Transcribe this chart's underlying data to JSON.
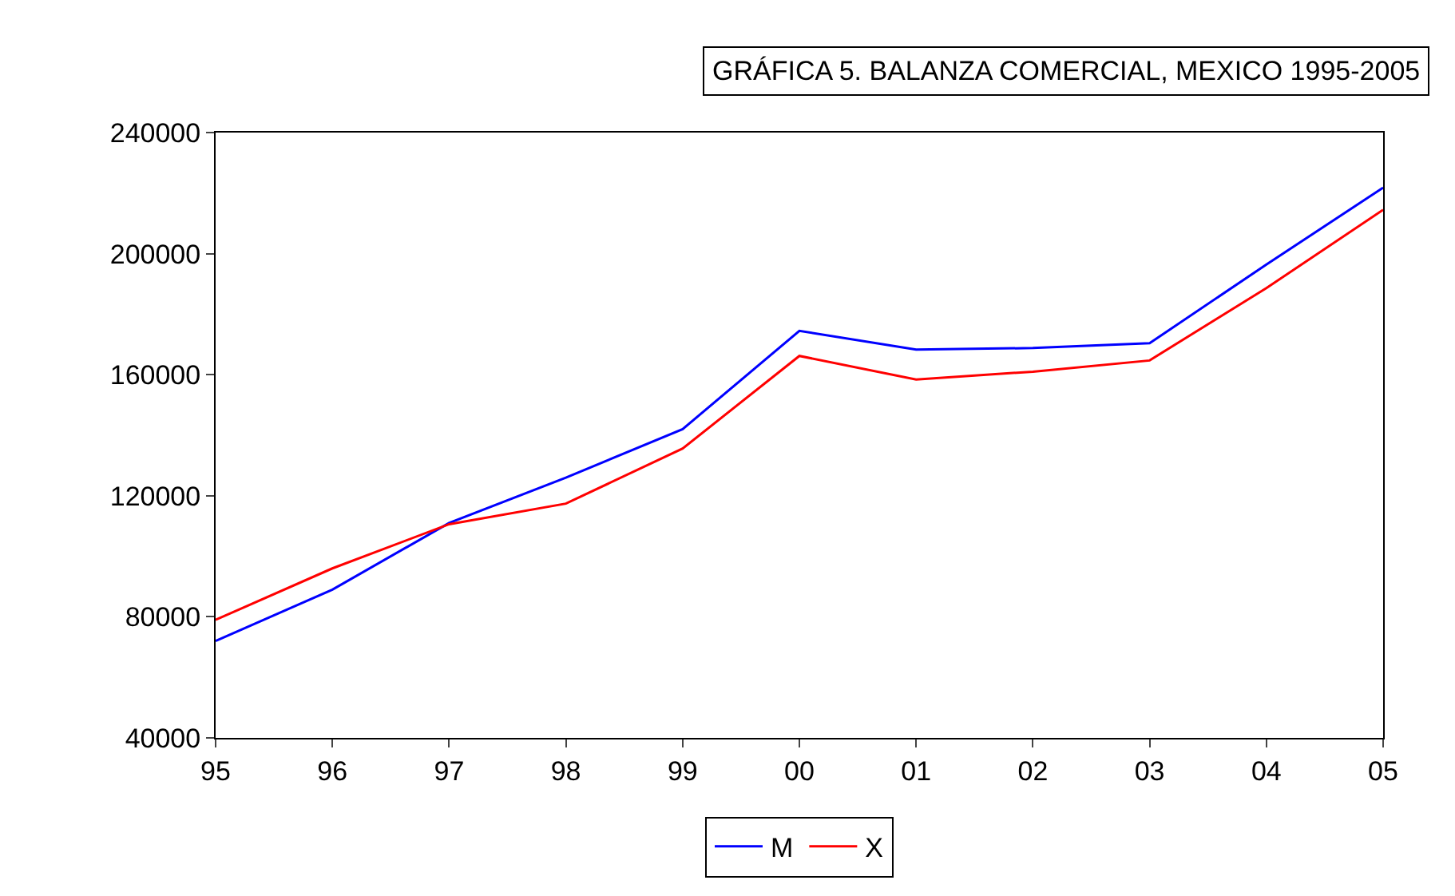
{
  "chart_data": {
    "type": "line",
    "title": "GRÁFICA 5. BALANZA COMERCIAL, MEXICO 1995-2005",
    "categories": [
      "95",
      "96",
      "97",
      "98",
      "99",
      "00",
      "01",
      "02",
      "03",
      "04",
      "05"
    ],
    "series": [
      {
        "name": "M",
        "color": "#0000ff",
        "values": [
          72000,
          89000,
          111000,
          126000,
          142000,
          174500,
          168300,
          168800,
          170400,
          196400,
          221800
        ]
      },
      {
        "name": "X",
        "color": "#ff0000",
        "values": [
          79000,
          96000,
          110600,
          117400,
          135600,
          166200,
          158400,
          161000,
          164700,
          188600,
          214500
        ]
      }
    ],
    "ylim": [
      40000,
      240000
    ],
    "yticks": [
      40000,
      80000,
      120000,
      160000,
      200000,
      240000
    ],
    "legend": "bottom",
    "marker": "none",
    "line_style": "solid"
  }
}
